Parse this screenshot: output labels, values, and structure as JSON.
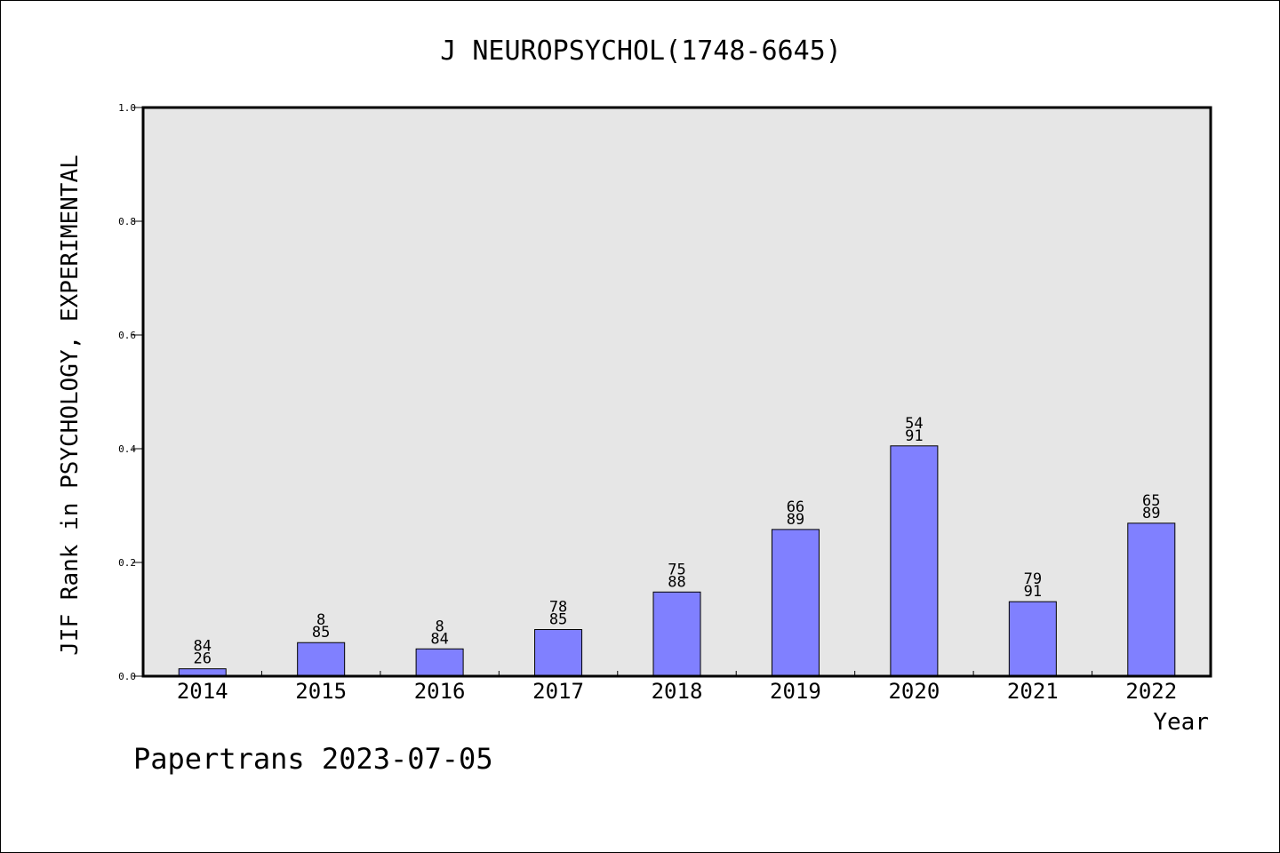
{
  "chart_data": {
    "type": "bar",
    "title": "J NEUROPSYCHOL(1748-6645)",
    "xlabel": "Year",
    "ylabel": "JIF Rank in PSYCHOLOGY, EXPERIMENTAL",
    "ylim": [
      0,
      1.0
    ],
    "yticks": [
      "0.0",
      "0.2",
      "0.4",
      "0.6",
      "0.8",
      "1.0"
    ],
    "categories": [
      "2014",
      "2015",
      "2016",
      "2017",
      "2018",
      "2019",
      "2020",
      "2021",
      "2022"
    ],
    "values": [
      0.013,
      0.059,
      0.048,
      0.082,
      0.148,
      0.258,
      0.405,
      0.131,
      0.269
    ],
    "labels_top": [
      "84",
      "8",
      "8",
      "78",
      "75",
      "66",
      "54",
      "79",
      "65"
    ],
    "labels_bottom": [
      "26",
      "85",
      "84",
      "85",
      "88",
      "89",
      "91",
      "91",
      "89"
    ],
    "grid": false,
    "bar_color": "#8080ff",
    "plot_background": "#e6e6e6"
  },
  "footer": "Papertrans 2023-07-05"
}
